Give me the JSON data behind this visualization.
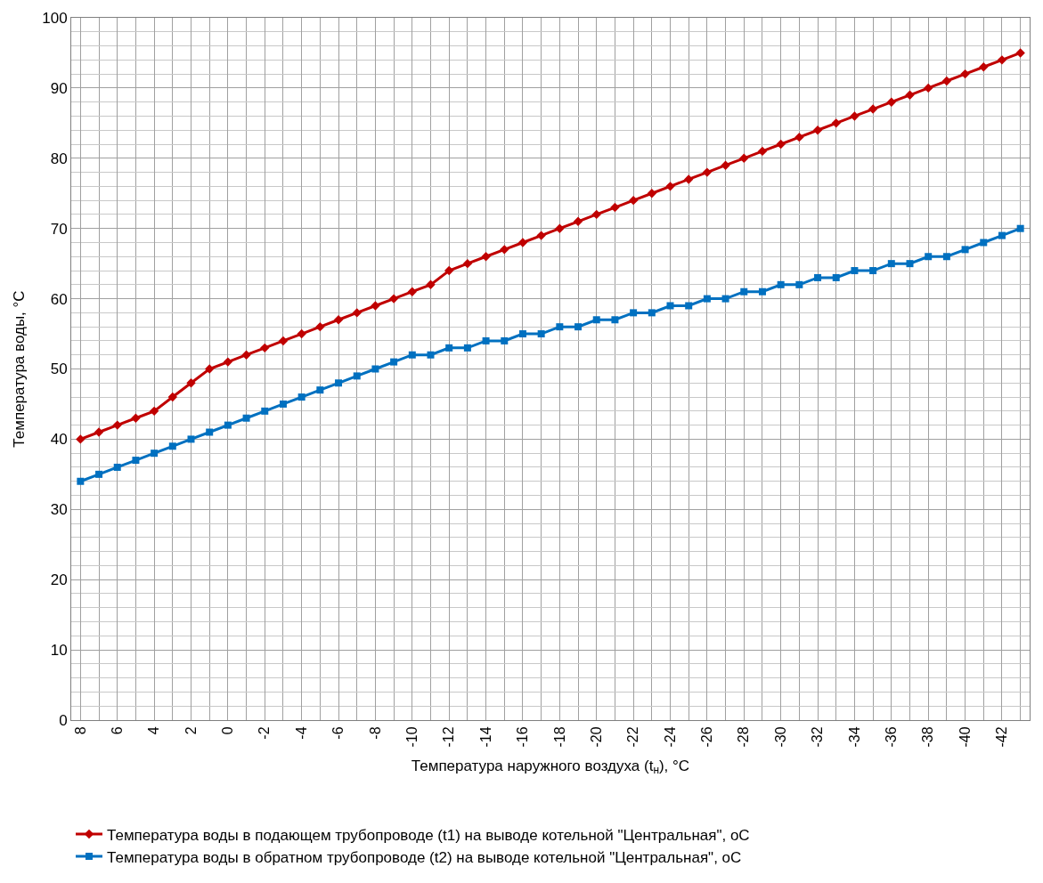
{
  "chart_data": {
    "type": "line",
    "xlabel": "Температура наружного воздуха (t$_{н}$), °C",
    "ylabel": "Температура воды, °C",
    "categories": [
      "8",
      null,
      "6",
      null,
      "4",
      null,
      "2",
      null,
      "0",
      null,
      "-2",
      null,
      "-4",
      null,
      "-6",
      null,
      "-8",
      null,
      "-10",
      null,
      "-12",
      null,
      "-14",
      null,
      "-16",
      null,
      "-18",
      null,
      "-20",
      null,
      "-22",
      null,
      "-24",
      null,
      "-26",
      null,
      "-28",
      null,
      "-30",
      null,
      "-32",
      null,
      "-34",
      null,
      "-36",
      null,
      "-38",
      null,
      "-40",
      null,
      "-42",
      null
    ],
    "series": [
      {
        "name": "Температура воды в подающем трубопроводе (t1) на выводе котельной \"Центральная\", oC",
        "color": "#c00000",
        "marker": "diamond",
        "values": [
          40,
          41,
          42,
          43,
          44,
          46,
          48,
          50,
          51,
          52,
          53,
          54,
          55,
          56,
          57,
          58,
          59,
          60,
          61,
          62,
          64,
          65,
          66,
          67,
          68,
          69,
          70,
          71,
          72,
          73,
          74,
          75,
          76,
          77,
          78,
          79,
          80,
          81,
          82,
          83,
          84,
          85,
          86,
          87,
          88,
          89,
          90,
          91,
          92,
          93,
          94,
          95
        ]
      },
      {
        "name": "Температура воды в обратном трубопроводе (t2) на выводе котельной \"Центральная\", oC",
        "color": "#0070c0",
        "marker": "square",
        "values": [
          34,
          35,
          36,
          37,
          38,
          39,
          40,
          41,
          42,
          43,
          44,
          45,
          46,
          47,
          48,
          49,
          50,
          51,
          52,
          52,
          53,
          53,
          54,
          54,
          55,
          55,
          56,
          56,
          57,
          57,
          58,
          58,
          59,
          59,
          60,
          60,
          61,
          61,
          62,
          62,
          63,
          63,
          64,
          64,
          65,
          65,
          66,
          66,
          67,
          68,
          69,
          70
        ]
      }
    ],
    "ylim": [
      0,
      100
    ],
    "yticks": [
      0,
      10,
      20,
      30,
      40,
      50,
      60,
      70,
      80,
      90,
      100
    ],
    "grid": true,
    "legend": "bottom",
    "line_style": "solid"
  }
}
